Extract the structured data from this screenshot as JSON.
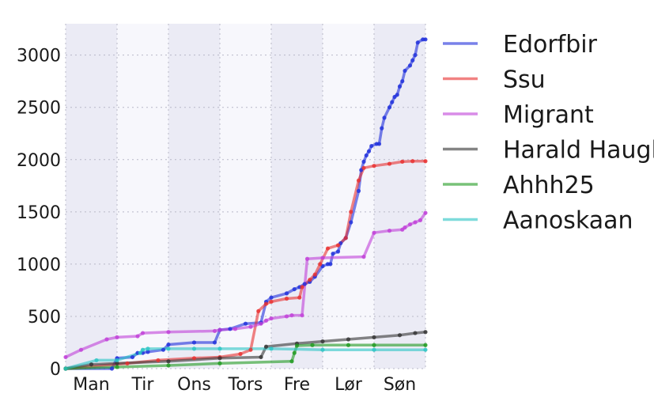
{
  "chart_data": {
    "type": "line",
    "title": "",
    "xlabel": "",
    "ylabel": "",
    "x_range": [
      0,
      7
    ],
    "ylim": [
      0,
      3300
    ],
    "x_tick_labels": [
      "Man",
      "Tir",
      "Ons",
      "Tors",
      "Fre",
      "Lør",
      "Søn"
    ],
    "y_ticks": [
      0,
      500,
      1000,
      1500,
      2000,
      2500,
      3000
    ],
    "background_bands": "alternating shaded weekday columns",
    "grid": true,
    "legend_position": "right-outside",
    "series": [
      {
        "name": "Edorfbir",
        "color": "#1f2fdc",
        "x": [
          0.0,
          0.9,
          1.0,
          1.3,
          1.4,
          1.5,
          1.6,
          1.9,
          2.0,
          2.5,
          2.9,
          3.0,
          3.2,
          3.5,
          3.8,
          3.9,
          4.0,
          4.3,
          4.45,
          4.55,
          4.65,
          4.75,
          4.85,
          5.0,
          5.1,
          5.15,
          5.2,
          5.3,
          5.35,
          5.45,
          5.55,
          5.7,
          5.75,
          5.8,
          5.85,
          5.9,
          5.95,
          6.05,
          6.1,
          6.15,
          6.2,
          6.3,
          6.35,
          6.4,
          6.45,
          6.5,
          6.55,
          6.6,
          6.7,
          6.75,
          6.8,
          6.85,
          6.95,
          7.0
        ],
        "y": [
          0,
          0,
          100,
          110,
          150,
          150,
          160,
          180,
          230,
          250,
          250,
          370,
          380,
          430,
          440,
          640,
          680,
          720,
          760,
          780,
          810,
          830,
          880,
          980,
          1000,
          1000,
          1100,
          1120,
          1200,
          1250,
          1400,
          1700,
          1900,
          1980,
          2040,
          2080,
          2130,
          2150,
          2150,
          2300,
          2400,
          2500,
          2550,
          2600,
          2620,
          2700,
          2750,
          2850,
          2900,
          2950,
          3000,
          3120,
          3150,
          3150
        ]
      },
      {
        "name": "Ssu",
        "color": "#e83030",
        "x": [
          0.0,
          1.2,
          1.8,
          2.5,
          3.0,
          3.4,
          3.6,
          3.75,
          3.9,
          4.0,
          4.3,
          4.55,
          4.6,
          4.75,
          4.85,
          4.95,
          5.1,
          5.3,
          5.45,
          5.55,
          5.7,
          5.8,
          6.0,
          6.3,
          6.55,
          6.75,
          7.0
        ],
        "y": [
          0,
          50,
          80,
          100,
          110,
          140,
          180,
          550,
          620,
          640,
          670,
          680,
          780,
          850,
          900,
          1000,
          1150,
          1180,
          1250,
          1500,
          1800,
          1920,
          1940,
          1960,
          1980,
          1985,
          1985
        ]
      },
      {
        "name": "Migrant",
        "color": "#c040d8",
        "x": [
          0.0,
          0.3,
          0.8,
          1.0,
          1.4,
          1.5,
          2.0,
          2.9,
          3.0,
          3.3,
          3.6,
          3.8,
          3.9,
          4.0,
          4.3,
          4.4,
          4.6,
          4.7,
          5.0,
          5.8,
          6.0,
          6.3,
          6.55,
          6.6,
          6.7,
          6.8,
          6.9,
          7.0
        ],
        "y": [
          110,
          180,
          280,
          300,
          310,
          340,
          350,
          360,
          370,
          380,
          400,
          430,
          460,
          480,
          500,
          510,
          510,
          1050,
          1060,
          1070,
          1300,
          1320,
          1330,
          1350,
          1380,
          1400,
          1420,
          1490
        ]
      },
      {
        "name": "Harald Haugh",
        "color": "#333333",
        "x": [
          0.0,
          0.5,
          1.0,
          2.0,
          3.0,
          3.8,
          3.9,
          4.5,
          5.0,
          5.5,
          6.0,
          6.5,
          6.8,
          7.0
        ],
        "y": [
          0,
          40,
          50,
          70,
          100,
          110,
          210,
          240,
          260,
          280,
          300,
          320,
          340,
          350
        ]
      },
      {
        "name": "Ahhh25",
        "color": "#1f9a1f",
        "x": [
          0.0,
          1.0,
          2.0,
          3.0,
          4.4,
          4.45,
          4.5,
          4.8,
          5.5,
          6.0,
          7.0
        ],
        "y": [
          0,
          15,
          30,
          50,
          70,
          150,
          220,
          225,
          225,
          225,
          225
        ]
      },
      {
        "name": "Aanoskaan",
        "color": "#2ac4c4",
        "x": [
          0.0,
          0.6,
          1.0,
          1.45,
          1.5,
          1.6,
          2.0,
          2.5,
          3.0,
          4.0,
          5.0,
          6.0,
          7.0
        ],
        "y": [
          0,
          80,
          80,
          150,
          180,
          190,
          190,
          190,
          190,
          190,
          180,
          180,
          180
        ]
      }
    ]
  }
}
